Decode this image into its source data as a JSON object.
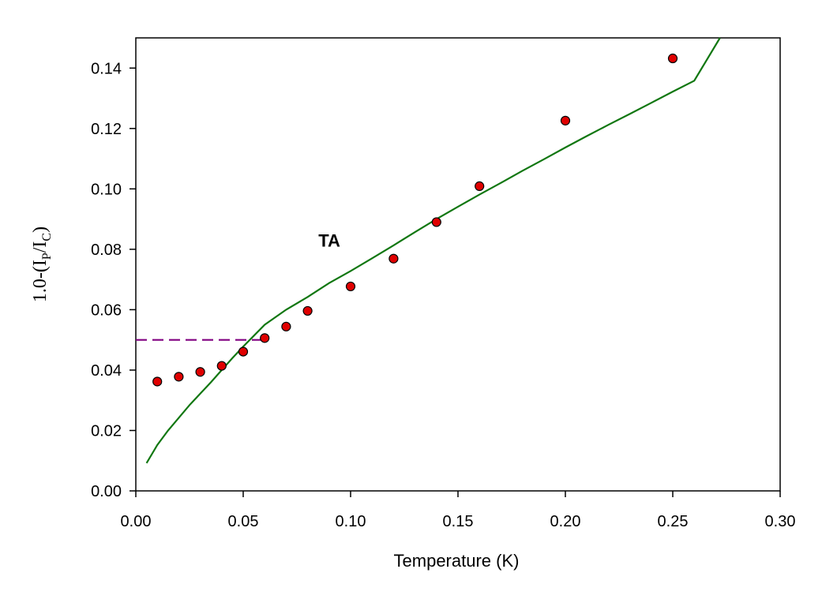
{
  "chart_data": {
    "type": "scatter",
    "title": "",
    "xlabel": "Temperature  (K)",
    "ylabel": "1.0-(IP/IC)",
    "ylabel_parts": {
      "prefix": "1.0-(I",
      "sub1": "P",
      "mid": "/I",
      "sub2": "C",
      "suffix": ")"
    },
    "xlim": [
      0.0,
      0.3
    ],
    "ylim": [
      0.0,
      0.15
    ],
    "xticks": [
      0.0,
      0.05,
      0.1,
      0.15,
      0.2,
      0.25,
      0.3
    ],
    "xtick_labels": [
      "0.00",
      "0.05",
      "0.10",
      "0.15",
      "0.20",
      "0.25",
      "0.30"
    ],
    "yticks": [
      0.0,
      0.02,
      0.04,
      0.06,
      0.08,
      0.1,
      0.12,
      0.14
    ],
    "ytick_labels": [
      "0.00",
      "0.02",
      "0.04",
      "0.06",
      "0.08",
      "0.10",
      "0.12",
      "0.14"
    ],
    "grid": false,
    "legend": "none",
    "annotations": [
      {
        "text": "TA",
        "x": 0.085,
        "y": 0.083
      }
    ],
    "series": [
      {
        "name": "measured",
        "kind": "markers",
        "color": "#e00000",
        "edge_color": "#000000",
        "x": [
          0.01,
          0.02,
          0.03,
          0.04,
          0.05,
          0.06,
          0.07,
          0.08,
          0.1,
          0.12,
          0.14,
          0.16,
          0.2,
          0.25
        ],
        "y": [
          0.0362,
          0.0378,
          0.0394,
          0.0414,
          0.0461,
          0.0506,
          0.0544,
          0.0596,
          0.0677,
          0.0769,
          0.089,
          0.1009,
          0.1226,
          0.1432
        ]
      },
      {
        "name": "TA",
        "kind": "line",
        "color": "#117711",
        "x": [
          0.005,
          0.008,
          0.01,
          0.015,
          0.02,
          0.025,
          0.03,
          0.035,
          0.04,
          0.045,
          0.05,
          0.055,
          0.06,
          0.07,
          0.08,
          0.09,
          0.1,
          0.11,
          0.12,
          0.13,
          0.14,
          0.15,
          0.16,
          0.17,
          0.18,
          0.19,
          0.2,
          0.21,
          0.22,
          0.23,
          0.24,
          0.25,
          0.26,
          0.272
        ],
        "y": [
          0.0092,
          0.0128,
          0.0152,
          0.02,
          0.0242,
          0.0284,
          0.0322,
          0.036,
          0.04,
          0.044,
          0.0478,
          0.0514,
          0.055,
          0.06,
          0.0642,
          0.0688,
          0.0728,
          0.077,
          0.0813,
          0.0857,
          0.09,
          0.0941,
          0.0981,
          0.102,
          0.106,
          0.1098,
          0.1137,
          0.1175,
          0.1212,
          0.1248,
          0.1285,
          0.1322,
          0.1358,
          0.15
        ]
      },
      {
        "name": "threshold",
        "kind": "dashed-line",
        "color": "#800080",
        "x": [
          0.0,
          0.06
        ],
        "y": [
          0.05,
          0.05
        ]
      }
    ]
  }
}
